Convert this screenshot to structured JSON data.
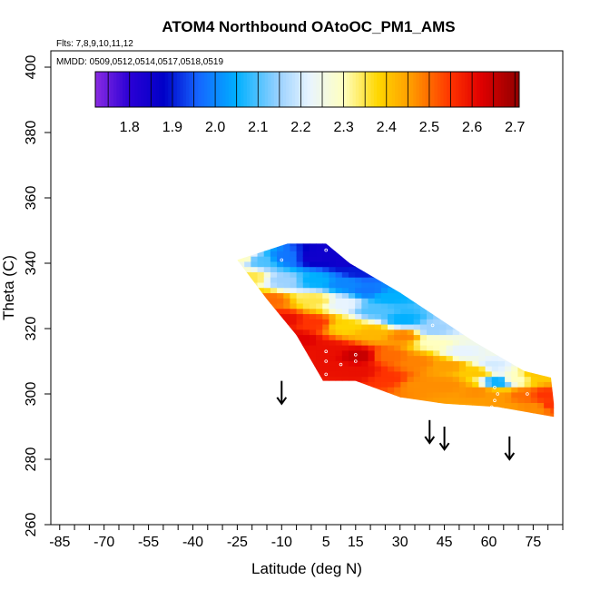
{
  "chart_data": {
    "type": "heatmap",
    "title": "ATOM4 Northbound OAtoOC_PM1_AMS",
    "flights_note": "Flts: 7,8,9,10,11,12",
    "dates_note": "MMDD: 0509,0512,0514,0517,0518,0519",
    "xlabel": "Latitude (deg N)",
    "ylabel": "Theta (C)",
    "xlim": [
      -88,
      85
    ],
    "ylim": [
      260,
      405
    ],
    "x_ticks": [
      -85,
      -70,
      -55,
      -40,
      -25,
      -10,
      5,
      15,
      30,
      45,
      60,
      75
    ],
    "x_tick_labels": [
      "-85",
      "-70",
      "-55",
      "-40",
      "-25",
      "-10",
      "5",
      "15",
      "30",
      "45",
      "60",
      "75"
    ],
    "x_minor_step": 5,
    "y_ticks": [
      260,
      280,
      300,
      320,
      340,
      360,
      380,
      400
    ],
    "y_tick_labels": [
      "260",
      "280",
      "300",
      "320",
      "340",
      "360",
      "380",
      "400"
    ],
    "colorbar": {
      "min": 1.72,
      "max": 2.71,
      "ticks": [
        1.8,
        1.9,
        2.0,
        2.1,
        2.2,
        2.3,
        2.4,
        2.5,
        2.6,
        2.7
      ],
      "tick_labels": [
        "1.8",
        "1.9",
        "2.0",
        "2.1",
        "2.2",
        "2.3",
        "2.4",
        "2.5",
        "2.6",
        "2.7"
      ],
      "stops": [
        {
          "v": 1.72,
          "c": "#8a2be2"
        },
        {
          "v": 1.8,
          "c": "#2a00d5"
        },
        {
          "v": 1.88,
          "c": "#0000c8"
        },
        {
          "v": 1.96,
          "c": "#1565ff"
        },
        {
          "v": 2.05,
          "c": "#00b0ff"
        },
        {
          "v": 2.15,
          "c": "#9cd2ff"
        },
        {
          "v": 2.22,
          "c": "#e8f4ff"
        },
        {
          "v": 2.3,
          "c": "#ffffc0"
        },
        {
          "v": 2.38,
          "c": "#ffd700"
        },
        {
          "v": 2.46,
          "c": "#ff9900"
        },
        {
          "v": 2.55,
          "c": "#ff3300"
        },
        {
          "v": 2.62,
          "c": "#e00000"
        },
        {
          "v": 2.71,
          "c": "#900000"
        }
      ]
    },
    "field_samples": [
      {
        "lat": -25,
        "theta": 341,
        "v": 2.3
      },
      {
        "lat": -18,
        "theta": 340,
        "v": 2.1
      },
      {
        "lat": -10,
        "theta": 341,
        "v": 1.98
      },
      {
        "lat": 0,
        "theta": 341,
        "v": 1.85
      },
      {
        "lat": 5,
        "theta": 344,
        "v": 1.85
      },
      {
        "lat": 10,
        "theta": 340,
        "v": 1.85
      },
      {
        "lat": 15,
        "theta": 337,
        "v": 1.9
      },
      {
        "lat": -22,
        "theta": 335,
        "v": 2.35
      },
      {
        "lat": -10,
        "theta": 334,
        "v": 2.15
      },
      {
        "lat": 0,
        "theta": 334,
        "v": 2.05
      },
      {
        "lat": 10,
        "theta": 333,
        "v": 2.0
      },
      {
        "lat": 18,
        "theta": 331,
        "v": 1.98
      },
      {
        "lat": 25,
        "theta": 329,
        "v": 2.05
      },
      {
        "lat": -15,
        "theta": 328,
        "v": 2.5
      },
      {
        "lat": 0,
        "theta": 328,
        "v": 2.35
      },
      {
        "lat": 10,
        "theta": 327,
        "v": 2.22
      },
      {
        "lat": 20,
        "theta": 325,
        "v": 2.1
      },
      {
        "lat": 30,
        "theta": 322,
        "v": 2.05
      },
      {
        "lat": 40,
        "theta": 319,
        "v": 2.15
      },
      {
        "lat": -10,
        "theta": 322,
        "v": 2.6
      },
      {
        "lat": 0,
        "theta": 321,
        "v": 2.55
      },
      {
        "lat": 10,
        "theta": 320,
        "v": 2.38
      },
      {
        "lat": 20,
        "theta": 318,
        "v": 2.42
      },
      {
        "lat": 30,
        "theta": 317,
        "v": 2.48
      },
      {
        "lat": 40,
        "theta": 315,
        "v": 2.3
      },
      {
        "lat": 50,
        "theta": 312,
        "v": 2.22
      },
      {
        "lat": 60,
        "theta": 308,
        "v": 2.2
      },
      {
        "lat": -5,
        "theta": 316,
        "v": 2.62
      },
      {
        "lat": 5,
        "theta": 313,
        "v": 2.6
      },
      {
        "lat": 15,
        "theta": 311,
        "v": 2.65
      },
      {
        "lat": 25,
        "theta": 311,
        "v": 2.5
      },
      {
        "lat": 35,
        "theta": 309,
        "v": 2.48
      },
      {
        "lat": 45,
        "theta": 308,
        "v": 2.45
      },
      {
        "lat": 55,
        "theta": 306,
        "v": 2.4
      },
      {
        "lat": 62,
        "theta": 303,
        "v": 2.05
      },
      {
        "lat": 68,
        "theta": 304,
        "v": 2.3
      },
      {
        "lat": 75,
        "theta": 305,
        "v": 2.4
      },
      {
        "lat": 5,
        "theta": 308,
        "v": 2.6
      },
      {
        "lat": 15,
        "theta": 306,
        "v": 2.6
      },
      {
        "lat": 25,
        "theta": 304,
        "v": 2.55
      },
      {
        "lat": 35,
        "theta": 302,
        "v": 2.47
      },
      {
        "lat": 45,
        "theta": 302,
        "v": 2.47
      },
      {
        "lat": 55,
        "theta": 300,
        "v": 2.47
      },
      {
        "lat": 62,
        "theta": 299,
        "v": 2.46
      },
      {
        "lat": 70,
        "theta": 299,
        "v": 2.5
      },
      {
        "lat": 78,
        "theta": 299,
        "v": 2.55
      },
      {
        "lat": 65,
        "theta": 295,
        "v": 2.46
      },
      {
        "lat": 75,
        "theta": 295,
        "v": 2.47
      },
      {
        "lat": 80,
        "theta": 296,
        "v": 2.55
      }
    ],
    "arrows": [
      {
        "lat": -10,
        "theta_top": 304,
        "theta_tip": 297
      },
      {
        "lat": 40,
        "theta_top": 292,
        "theta_tip": 285
      },
      {
        "lat": 45,
        "theta_top": 290,
        "theta_tip": 283
      },
      {
        "lat": 67,
        "theta_top": 287,
        "theta_tip": 280
      }
    ],
    "grid": false,
    "legend": "colorbar top-inside"
  }
}
